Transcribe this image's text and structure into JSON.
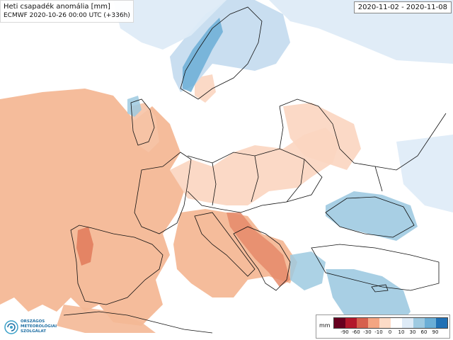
{
  "title": "Heti csapadék anomália [mm]",
  "subtitle": "ECMWF 2020-10-26 00:00 UTC (+336h)",
  "date_range": "2020-11-02 - 2020-11-08",
  "logo": {
    "lines": [
      "ORSZÁGOS",
      "METEOROLÓGIAI",
      "SZOLGÁLAT"
    ],
    "icon": "omsz-swirl-icon"
  },
  "legend": {
    "unit": "mm",
    "ticks": [
      "-90",
      "-60",
      "-30",
      "-10",
      "0",
      "10",
      "30",
      "60",
      "90"
    ],
    "colors": [
      "#67001f",
      "#b2182b",
      "#d6604d",
      "#f4a582",
      "#fddbc7",
      "#ffffff",
      "#deebf7",
      "#9ecae1",
      "#6baed6",
      "#2171b5"
    ]
  },
  "colors": {
    "land": "#ffffff",
    "sea": "#ffffff",
    "border": "#111111"
  }
}
